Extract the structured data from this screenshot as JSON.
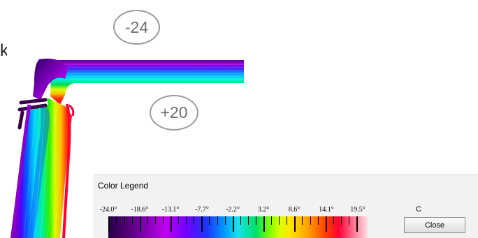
{
  "temperatures": {
    "outside": "-24",
    "inside": "+20"
  },
  "legend": {
    "title": "Color Legend",
    "labels": [
      "-24.0°",
      "-18.6°",
      "-13.1°",
      "-7.7°",
      "-2.2°",
      "3.2°",
      "8.6°",
      "14.1°",
      "19.5°"
    ],
    "unit": "C",
    "close_label": "Close"
  },
  "colors": {
    "cold": "#24004d",
    "cool": "#1b35ff",
    "mid": "#16e3ec",
    "warm": "#ffe600",
    "hot": "#ff0037"
  }
}
